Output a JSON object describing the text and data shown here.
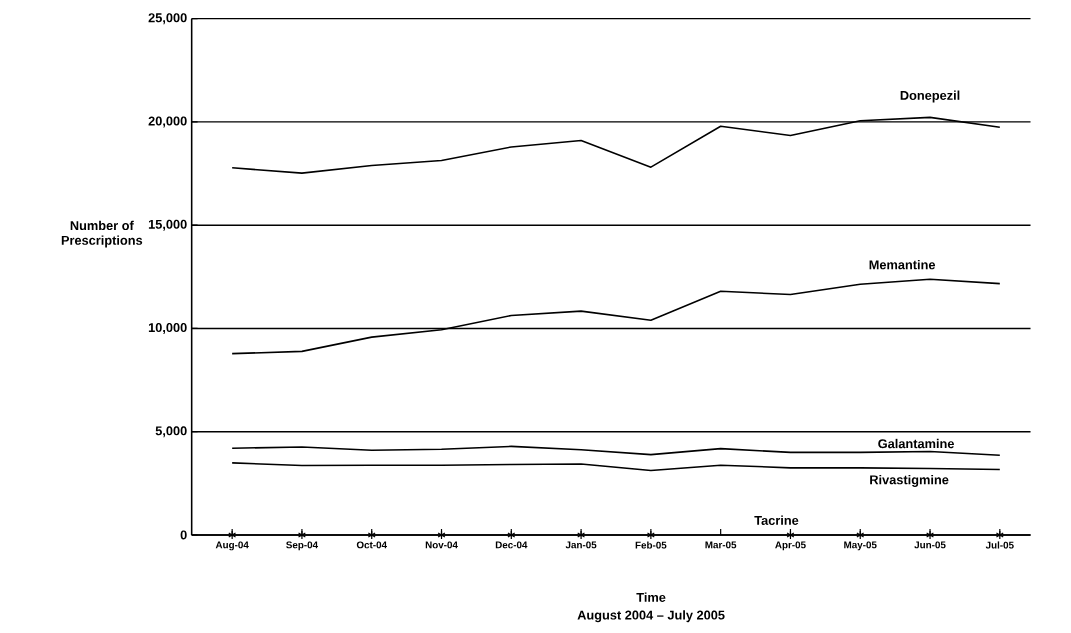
{
  "chart_data": {
    "type": "line",
    "xlabel": "Time",
    "ylabel": "Number of Prescriptions",
    "annotations": [
      "August 2004 – July 2005"
    ],
    "categories": [
      "Aug-04",
      "Sep-04",
      "Oct-04",
      "Nov-04",
      "Dec-04",
      "Jan-05",
      "Feb-05",
      "Mar-05",
      "Apr-05",
      "May-05",
      "Jun-05",
      "Jul-05"
    ],
    "series": [
      {
        "name": "Donepezil",
        "color": "#000000",
        "values": [
          17780,
          17520,
          17890,
          18130,
          18790,
          19100,
          17810,
          19790,
          19340,
          20060,
          20220,
          19740
        ]
      },
      {
        "name": "Memantine",
        "color": "#000000",
        "values": [
          8780,
          8890,
          9580,
          9940,
          10630,
          10840,
          10400,
          11800,
          11640,
          12140,
          12380,
          12170
        ]
      },
      {
        "name": "Galantamine",
        "color": "#000000",
        "values": [
          4200,
          4260,
          4100,
          4150,
          4290,
          4130,
          3890,
          4180,
          4000,
          4000,
          4040,
          3860
        ]
      },
      {
        "name": "Rivastigmine",
        "color": "#000000",
        "values": [
          3490,
          3360,
          3380,
          3380,
          3410,
          3440,
          3120,
          3380,
          3250,
          3250,
          3220,
          3170
        ]
      },
      {
        "name": "Tacrine",
        "color": "#000000",
        "type": "scatter",
        "marker": "cross",
        "values": [
          0,
          0,
          0,
          0,
          0,
          0,
          0,
          null,
          0,
          0,
          0,
          0
        ]
      }
    ],
    "ylim": [
      0,
      25000
    ],
    "yticks": [
      {
        "value": 0,
        "label": "0"
      },
      {
        "value": 5000,
        "label": "5,000"
      },
      {
        "value": 10000,
        "label": "10,000"
      },
      {
        "value": 15000,
        "label": "15,000"
      },
      {
        "value": 20000,
        "label": "20,000"
      },
      {
        "value": 25000,
        "label": "25,000"
      }
    ],
    "grid": "y",
    "marker": "none",
    "line_style": "solid"
  }
}
